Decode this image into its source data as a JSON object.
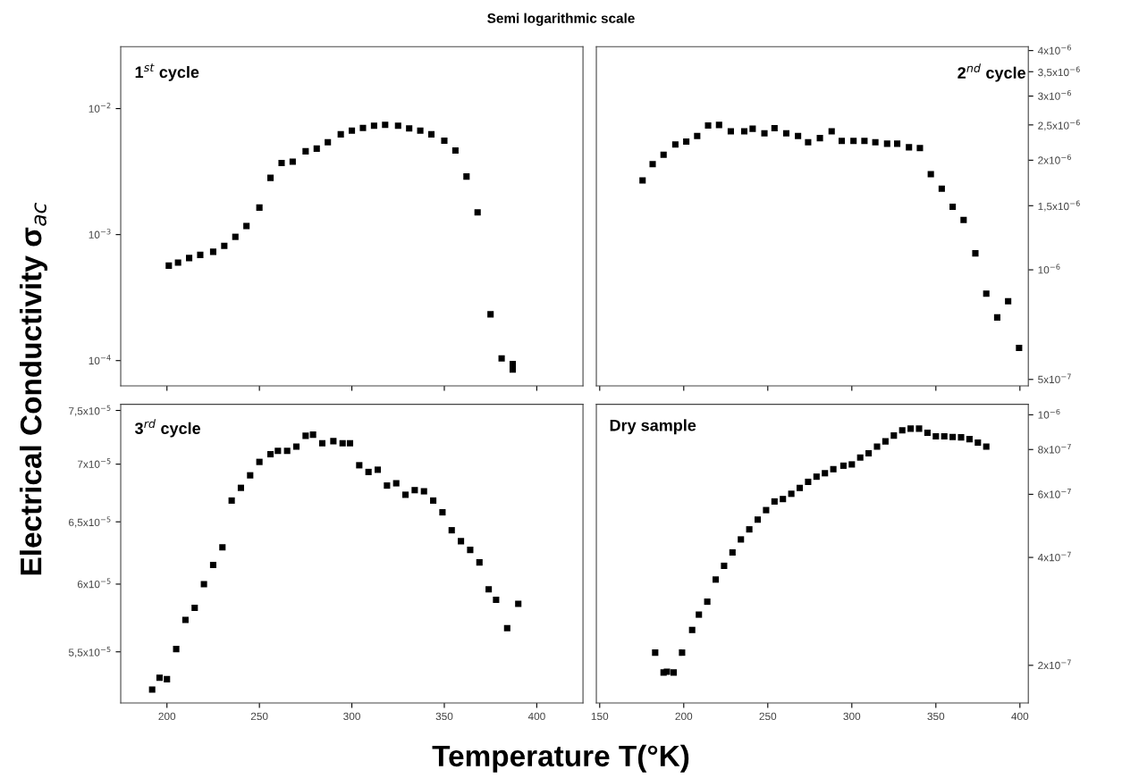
{
  "chart_data": [
    {
      "type": "scatter",
      "title": "1$^{st}$ cycle",
      "ylabel": "Electrical Conductivity σ$_{ac}$",
      "annotations": [
        "Semi logarithmic scale"
      ],
      "log": "y",
      "marker": "square",
      "grid": false,
      "tick_labels": "y",
      "xlim": [
        175,
        425
      ],
      "xticks": [
        200,
        250,
        300,
        350,
        400
      ],
      "ylim": [
        6.3e-05,
        0.031
      ],
      "yticks": [
        {
          "value": 0.0001,
          "label": "10$^{−4}$"
        },
        {
          "value": 0.001,
          "label": "10$^{−3}$"
        },
        {
          "value": 0.01,
          "label": "10$^{−2}$"
        }
      ],
      "series": [
        {
          "color": "#000000",
          "x": [
            201,
            206,
            212,
            218,
            225,
            231,
            237,
            243,
            250,
            256,
            262,
            268,
            275,
            281,
            287,
            294,
            300,
            306,
            312,
            318,
            325,
            331,
            337,
            343,
            350,
            356,
            362,
            368,
            375,
            381,
            387,
            387
          ],
          "values": [
            0.000567,
            0.0006,
            0.000652,
            0.00069,
            0.000731,
            0.000815,
            0.00096,
            0.00117,
            0.00164,
            0.00282,
            0.0037,
            0.00379,
            0.00458,
            0.00481,
            0.0054,
            0.00625,
            0.00668,
            0.00702,
            0.00731,
            0.00743,
            0.00731,
            0.00697,
            0.00668,
            0.00625,
            0.00557,
            0.00465,
            0.00289,
            0.0015,
            0.000233,
            0.000104,
            9.4e-05,
            8.5e-05
          ]
        }
      ]
    },
    {
      "type": "scatter",
      "title": "2$^{nd}$ cycle",
      "log": "y",
      "marker": "square",
      "grid": false,
      "tick_labels": "y",
      "xlim": [
        148,
        405
      ],
      "xticks": [
        150,
        200,
        250,
        300,
        350,
        400
      ],
      "ylim": [
        4.8e-07,
        4.1e-06
      ],
      "yticks": [
        {
          "value": 5e-07,
          "label": "5x10$^{−7}$"
        },
        {
          "value": 1e-06,
          "label": "10$^{−6}$"
        },
        {
          "value": 1.5e-06,
          "label": "1,5x10$^{−6}$"
        },
        {
          "value": 2e-06,
          "label": "2x10$^{−6}$"
        },
        {
          "value": 2.5e-06,
          "label": "2,5x10$^{−6}$"
        },
        {
          "value": 3e-06,
          "label": "3x10$^{−6}$"
        },
        {
          "value": 3.5e-06,
          "label": "3,5x10$^{−6}$"
        },
        {
          "value": 4e-06,
          "label": "4x10$^{−6}$"
        }
      ],
      "series": [
        {
          "color": "#000000",
          "x": [
            175.5,
            181.5,
            188,
            195,
            201.5,
            208,
            214.5,
            221,
            228,
            236,
            241,
            248,
            254,
            261,
            268,
            274,
            281,
            288,
            294,
            301,
            307.5,
            314,
            321,
            327,
            334,
            340.5,
            347,
            353.5,
            360,
            366.5,
            373.5,
            380,
            386.5,
            393,
            399.5
          ],
          "values": [
            1.76e-06,
            1.95e-06,
            2.07e-06,
            2.21e-06,
            2.25e-06,
            2.33e-06,
            2.49e-06,
            2.5e-06,
            2.4e-06,
            2.4e-06,
            2.44e-06,
            2.37e-06,
            2.45e-06,
            2.37e-06,
            2.33e-06,
            2.24e-06,
            2.3e-06,
            2.4e-06,
            2.26e-06,
            2.26e-06,
            2.26e-06,
            2.24e-06,
            2.22e-06,
            2.22e-06,
            2.17e-06,
            2.16e-06,
            1.83e-06,
            1.67e-06,
            1.49e-06,
            1.37e-06,
            1.11e-06,
            8.6e-07,
            7.4e-07,
            8.2e-07,
            6.1e-07
          ]
        }
      ]
    },
    {
      "type": "scatter",
      "title": "3$^{rd}$ cycle",
      "xlabel": "Temperature T(°K)",
      "log": "y",
      "marker": "square",
      "grid": false,
      "xlim": [
        175,
        425
      ],
      "xticks": [
        200,
        250,
        300,
        350,
        400
      ],
      "ylim": [
        5.15e-05,
        7.56e-05
      ],
      "yticks": [
        {
          "value": 5.5e-05,
          "label": "5,5x10$^{−5}$"
        },
        {
          "value": 6e-05,
          "label": "6x10$^{−5}$"
        },
        {
          "value": 6.5e-05,
          "label": "6,5x10$^{−5}$"
        },
        {
          "value": 7e-05,
          "label": "7x10$^{−5}$"
        },
        {
          "value": 7.5e-05,
          "label": "7,5x10$^{−5}$"
        }
      ],
      "series": [
        {
          "color": "#000000",
          "x": [
            192,
            196,
            200,
            205,
            210,
            215,
            220,
            225,
            230,
            235,
            240,
            245,
            250,
            256,
            260,
            265,
            270,
            275,
            279,
            284,
            290,
            295,
            299,
            304,
            309,
            314,
            319,
            324,
            329,
            334,
            339,
            344,
            349,
            354,
            359,
            364,
            369,
            374,
            378,
            384,
            390
          ],
          "values": [
            5.24e-05,
            5.32e-05,
            5.31e-05,
            5.52e-05,
            5.73e-05,
            5.82e-05,
            6e-05,
            6.15e-05,
            6.29e-05,
            6.68e-05,
            6.79e-05,
            6.9e-05,
            7.02e-05,
            7.09e-05,
            7.12e-05,
            7.12e-05,
            7.16e-05,
            7.26e-05,
            7.27e-05,
            7.19e-05,
            7.21e-05,
            7.19e-05,
            7.19e-05,
            6.99e-05,
            6.93e-05,
            6.95e-05,
            6.81e-05,
            6.83e-05,
            6.73e-05,
            6.77e-05,
            6.76e-05,
            6.68e-05,
            6.58e-05,
            6.43e-05,
            6.34e-05,
            6.27e-05,
            6.17e-05,
            5.96e-05,
            5.88e-05,
            5.67e-05,
            5.85e-05
          ]
        }
      ]
    },
    {
      "type": "scatter",
      "title": "Dry sample",
      "log": "y",
      "marker": "square",
      "grid": false,
      "xlim": [
        148,
        405
      ],
      "xticks": [
        150,
        200,
        250,
        300,
        350,
        400
      ],
      "ylim": [
        1.57e-07,
        1.07e-06
      ],
      "yticks": [
        {
          "value": 2e-07,
          "label": "2x10$^{−7}$"
        },
        {
          "value": 4e-07,
          "label": "4x10$^{−7}$"
        },
        {
          "value": 6e-07,
          "label": "6x10$^{−7}$"
        },
        {
          "value": 8e-07,
          "label": "8x10$^{−7}$"
        },
        {
          "value": 1e-06,
          "label": "10$^{−6}$"
        }
      ],
      "series": [
        {
          "color": "#000000",
          "x": [
            183,
            188,
            190,
            194,
            199,
            205,
            209,
            214,
            219,
            224,
            229,
            234,
            239,
            244,
            249,
            254,
            259,
            264,
            269,
            274,
            279,
            284,
            289,
            295,
            300,
            305,
            310,
            315,
            320,
            325,
            330,
            335,
            340,
            345,
            350,
            355,
            360,
            365,
            370,
            375,
            380
          ],
          "values": [
            2.17e-07,
            1.91e-07,
            1.92e-07,
            1.91e-07,
            2.17e-07,
            2.51e-07,
            2.77e-07,
            3.01e-07,
            3.47e-07,
            3.79e-07,
            4.13e-07,
            4.49e-07,
            4.79e-07,
            5.1e-07,
            5.42e-07,
            5.73e-07,
            5.82e-07,
            6.02e-07,
            6.25e-07,
            6.5e-07,
            6.72e-07,
            6.87e-07,
            7.05e-07,
            7.21e-07,
            7.27e-07,
            7.6e-07,
            7.81e-07,
            8.15e-07,
            8.43e-07,
            8.75e-07,
            9.05e-07,
            9.15e-07,
            9.15e-07,
            8.91e-07,
            8.71e-07,
            8.71e-07,
            8.67e-07,
            8.65e-07,
            8.55e-07,
            8.36e-07,
            8.15e-07
          ]
        }
      ]
    }
  ]
}
